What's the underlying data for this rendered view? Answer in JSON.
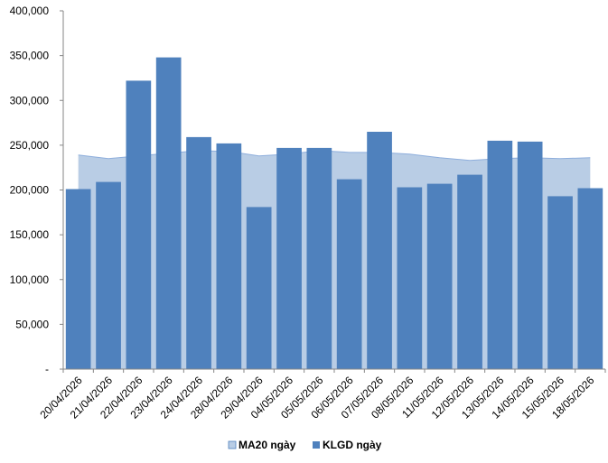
{
  "chart_data": {
    "type": "bar",
    "title": "",
    "xlabel": "",
    "ylabel": "",
    "ylim": [
      0,
      400000
    ],
    "yticks": [
      0,
      50000,
      100000,
      150000,
      200000,
      250000,
      300000,
      350000,
      400000
    ],
    "ytick_labels": [
      "-",
      "50,000",
      "100,000",
      "150,000",
      "200,000",
      "250,000",
      "300,000",
      "350,000",
      "400,000"
    ],
    "grid": false,
    "legend_position": "bottom",
    "categories": [
      "20/04/2026",
      "21/04/2026",
      "22/04/2026",
      "23/04/2026",
      "24/04/2026",
      "28/04/2026",
      "29/04/2026",
      "04/05/2026",
      "05/05/2026",
      "06/05/2026",
      "07/05/2026",
      "08/05/2026",
      "11/05/2026",
      "12/05/2026",
      "13/05/2026",
      "14/05/2026",
      "15/05/2026",
      "18/05/2026"
    ],
    "series": [
      {
        "name": "MA20 ngày",
        "type": "area",
        "color": "#b9cde5",
        "stroke": "#8eaedc",
        "values": [
          239000,
          235000,
          238000,
          241000,
          244000,
          243000,
          238000,
          240000,
          244000,
          242000,
          242000,
          240000,
          236000,
          233000,
          235000,
          236000,
          235000,
          236000
        ]
      },
      {
        "name": "KLGD ngày",
        "type": "bar",
        "color": "#4f81bd",
        "values": [
          201000,
          209000,
          322000,
          348000,
          259000,
          252000,
          181000,
          247000,
          247000,
          212000,
          265000,
          203000,
          207000,
          217000,
          255000,
          254000,
          193000,
          202000
        ]
      }
    ]
  }
}
